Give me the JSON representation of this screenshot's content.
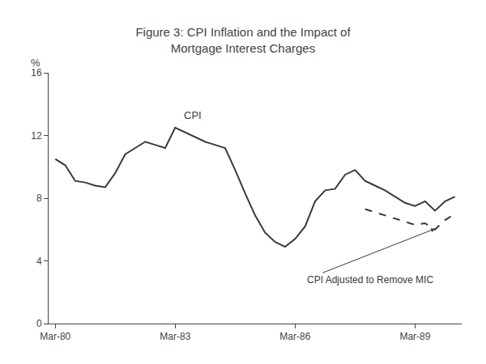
{
  "chart_data": {
    "type": "line",
    "title": "Figure 3: CPI Inflation and the Impact of\nMortgage Interest Charges",
    "ylabel": "%",
    "xlim": [
      -2,
      122
    ],
    "xticks": [
      {
        "value": 0,
        "label": "Mar-80"
      },
      {
        "value": 36,
        "label": "Mar-83"
      },
      {
        "value": 72,
        "label": "Mar-86"
      },
      {
        "value": 108,
        "label": "Mar-89"
      }
    ],
    "ylim": [
      0,
      16
    ],
    "yticks": [
      0,
      4,
      8,
      12,
      16
    ],
    "grid": false,
    "series": [
      {
        "color": "#3a3a3a",
        "line_style": "solid",
        "x": [
          0,
          3,
          6,
          9,
          12,
          15,
          18,
          21,
          24,
          27,
          30,
          33,
          36,
          39,
          42,
          45,
          48,
          51,
          54,
          57,
          60,
          63,
          66,
          69,
          72,
          75,
          78,
          81,
          84,
          87,
          90,
          93,
          96,
          99,
          102,
          105,
          108,
          111,
          114,
          117,
          120
        ],
        "values": [
          10.5,
          10.1,
          9.1,
          9.0,
          8.8,
          8.7,
          9.6,
          10.8,
          11.2,
          11.6,
          11.4,
          11.2,
          12.5,
          12.2,
          11.9,
          11.6,
          11.4,
          11.2,
          9.8,
          8.3,
          6.9,
          5.8,
          5.2,
          4.9,
          5.4,
          6.2,
          7.8,
          8.5,
          8.6,
          9.5,
          9.8,
          9.1,
          8.8,
          8.5,
          8.1,
          7.7,
          7.5,
          7.8,
          7.2,
          7.8,
          8.1
        ]
      },
      {
        "color": "#3a3a3a",
        "line_style": "dashed",
        "x": [
          93,
          96,
          99,
          102,
          105,
          108,
          111,
          114,
          117,
          120
        ],
        "values": [
          7.3,
          7.1,
          6.9,
          6.7,
          6.5,
          6.3,
          6.4,
          6.0,
          6.6,
          7.0
        ]
      }
    ],
    "annotations": [
      {
        "text": "CPI",
        "x": 38,
        "y": 12.8,
        "color": "#3a3a3a"
      },
      {
        "text": "CPI Adjusted to Remove MIC",
        "x": 75,
        "y": 2.8,
        "arrow_x": 114,
        "arrow_y": 6.05,
        "color": "#3a3a3a"
      }
    ]
  }
}
